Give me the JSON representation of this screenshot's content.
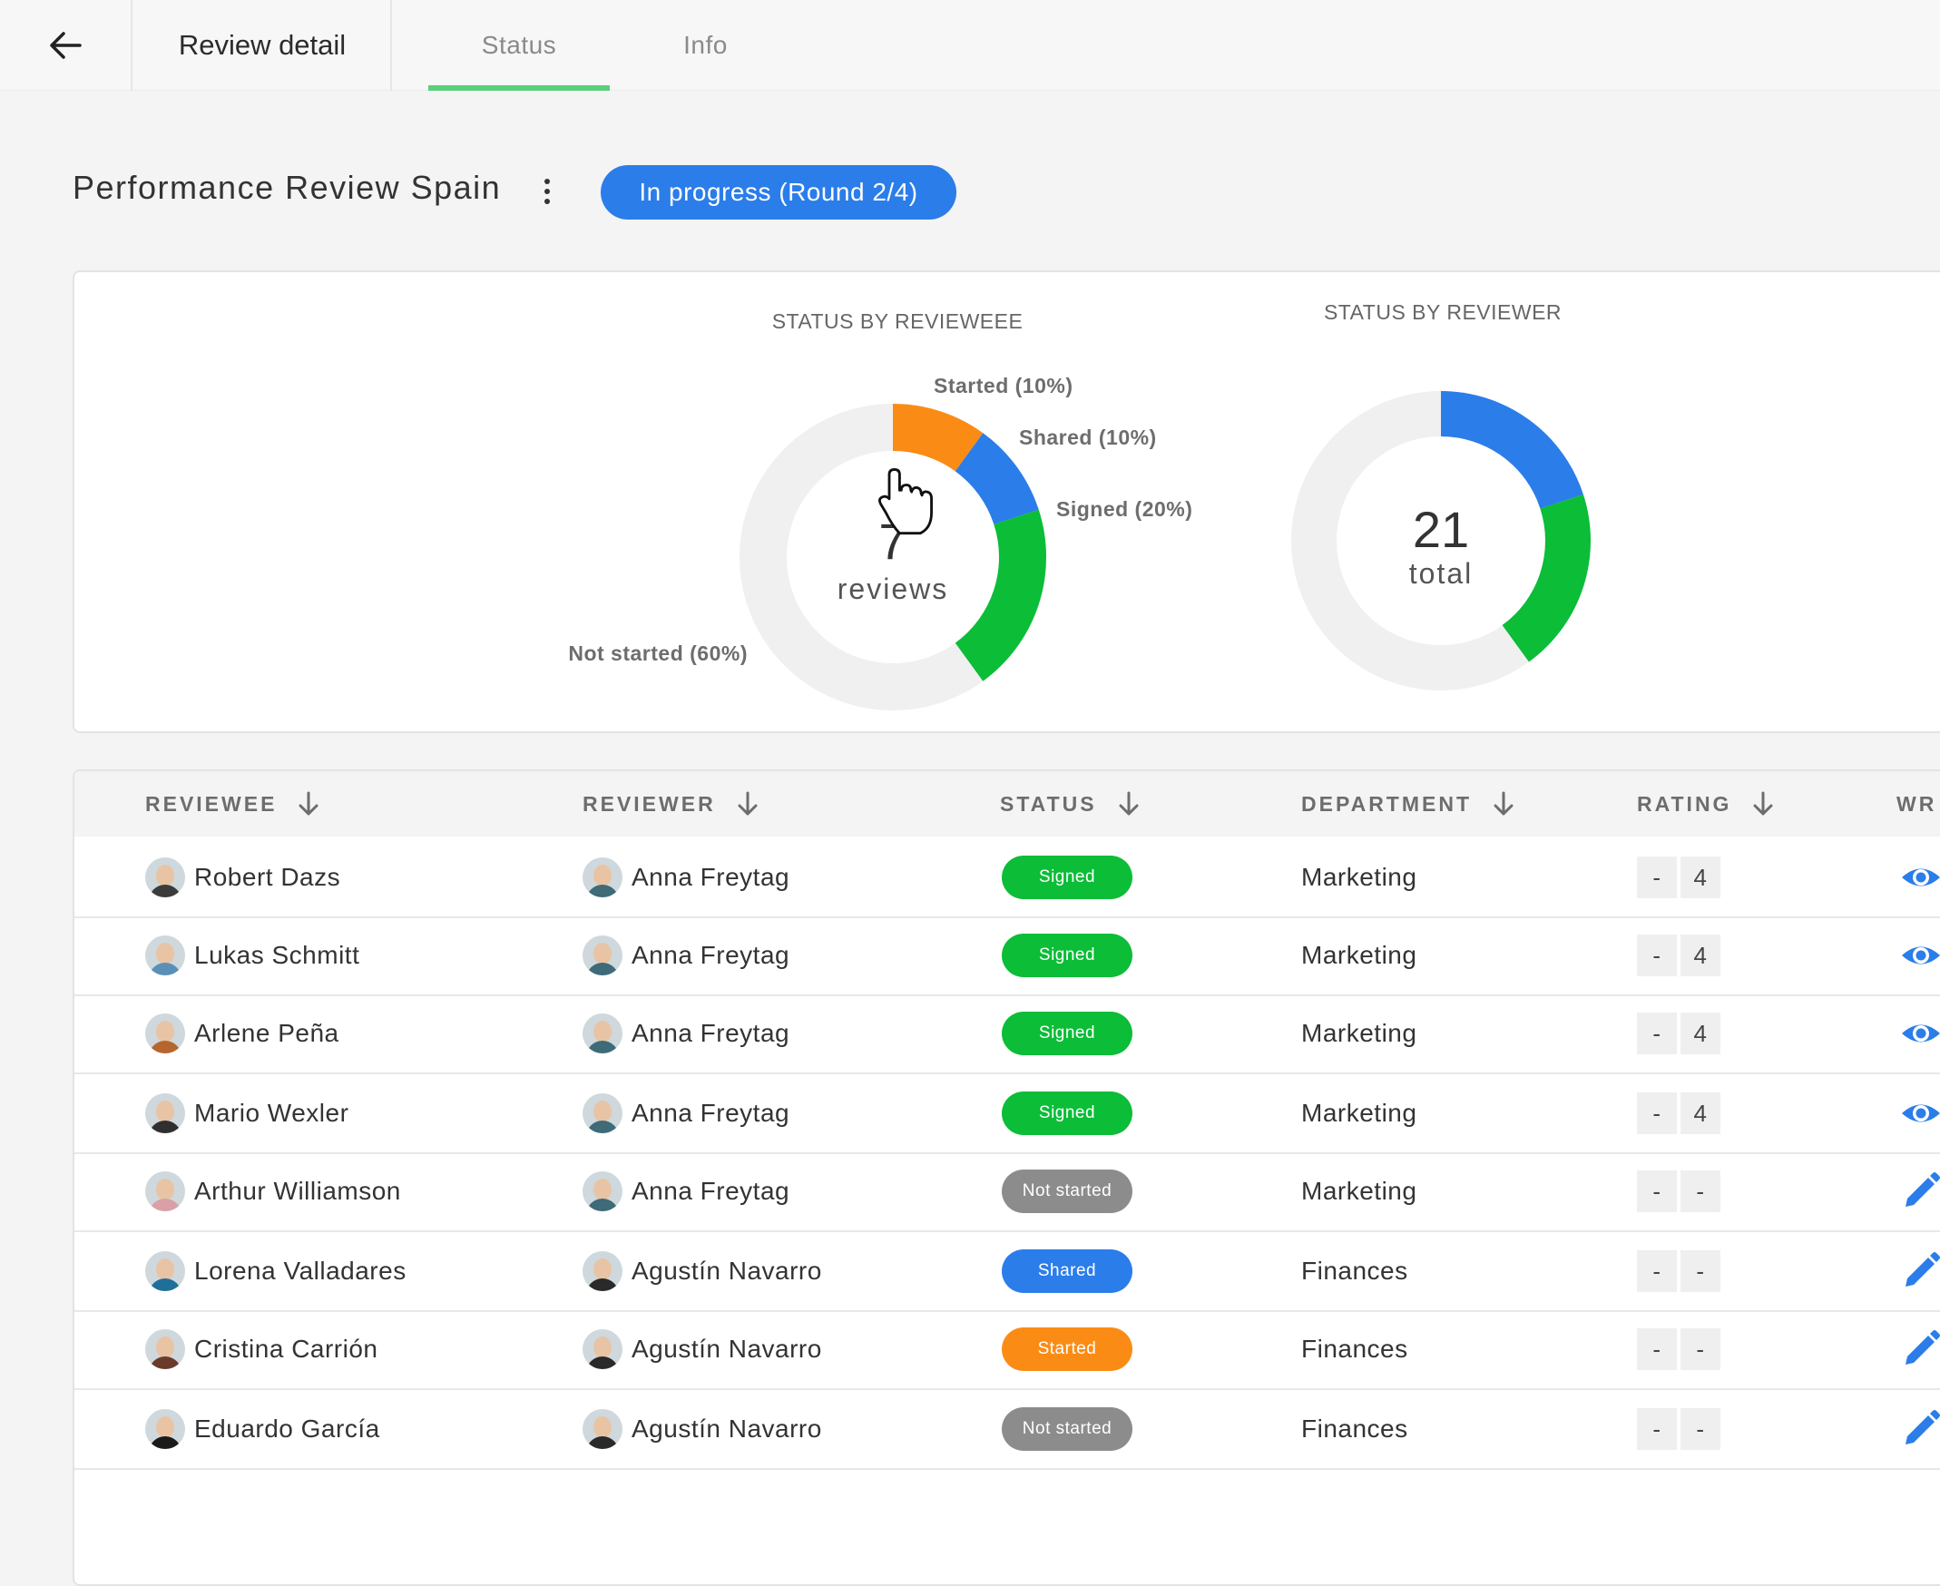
{
  "header": {
    "back_icon": "arrow-left-icon",
    "title": "Review detail",
    "tabs": [
      {
        "label": "Status",
        "active": true
      },
      {
        "label": "Info",
        "active": false
      }
    ]
  },
  "review": {
    "name": "Performance Review Spain",
    "menu_icon": "kebab-menu-icon",
    "status_pill": "In progress (Round 2/4)",
    "status_pill_color": "#2b7de9"
  },
  "colors": {
    "signed": "#0bbd37",
    "shared": "#2b7de9",
    "started": "#fa8c16",
    "not_started": "#8c8c8c",
    "track": "#f0f0f0",
    "tab_active": "#5ad07a"
  },
  "chart_data": [
    {
      "type": "pie",
      "title": "STATUS BY REVIEWEEE",
      "center_value": "7",
      "center_label": "reviews",
      "slices": [
        {
          "label": "Started (10%)",
          "value": 10,
          "color": "#fa8c16"
        },
        {
          "label": "Shared (10%)",
          "value": 10,
          "color": "#2b7de9"
        },
        {
          "label": "Signed (20%)",
          "value": 20,
          "color": "#0bbd37"
        },
        {
          "label": "Not started (60%)",
          "value": 60,
          "color": "#f0f0f0"
        }
      ]
    },
    {
      "type": "pie",
      "title": "STATUS BY REVIEWER",
      "center_value": "21",
      "center_label": "total",
      "slices": [
        {
          "label": "",
          "value": 20,
          "color": "#2b7de9"
        },
        {
          "label": "",
          "value": 20,
          "color": "#0bbd37"
        },
        {
          "label": "",
          "value": 60,
          "color": "#f0f0f0"
        }
      ]
    }
  ],
  "table": {
    "columns": [
      "REVIEWEE",
      "REVIEWER",
      "STATUS",
      "DEPARTMENT",
      "RATING",
      "WR"
    ],
    "sort_icon": "arrow-down-icon",
    "rows": [
      {
        "reviewee": "Robert Dazs",
        "reviewer": "Anna Freytag",
        "status": "Signed",
        "department": "Marketing",
        "rating": [
          "-",
          "4"
        ],
        "action": "eye-icon"
      },
      {
        "reviewee": "Lukas Schmitt",
        "reviewer": "Anna Freytag",
        "status": "Signed",
        "department": "Marketing",
        "rating": [
          "-",
          "4"
        ],
        "action": "eye-icon"
      },
      {
        "reviewee": "Arlene Peña",
        "reviewer": "Anna Freytag",
        "status": "Signed",
        "department": "Marketing",
        "rating": [
          "-",
          "4"
        ],
        "action": "eye-icon"
      },
      {
        "reviewee": "Mario Wexler",
        "reviewer": "Anna Freytag",
        "status": "Signed",
        "department": "Marketing",
        "rating": [
          "-",
          "4"
        ],
        "action": "eye-icon"
      },
      {
        "reviewee": "Arthur Williamson",
        "reviewer": "Anna Freytag",
        "status": "Not started",
        "department": "Marketing",
        "rating": [
          "-",
          "-"
        ],
        "action": "pencil-icon"
      },
      {
        "reviewee": "Lorena Valladares",
        "reviewer": "Agustín Navarro",
        "status": "Shared",
        "department": "Finances",
        "rating": [
          "-",
          "-"
        ],
        "action": "pencil-icon"
      },
      {
        "reviewee": "Cristina Carrión",
        "reviewer": "Agustín Navarro",
        "status": "Started",
        "department": "Finances",
        "rating": [
          "-",
          "-"
        ],
        "action": "pencil-icon"
      },
      {
        "reviewee": "Eduardo García",
        "reviewer": "Agustín Navarro",
        "status": "Not started",
        "department": "Finances",
        "rating": [
          "-",
          "-"
        ],
        "action": "pencil-icon"
      }
    ]
  }
}
